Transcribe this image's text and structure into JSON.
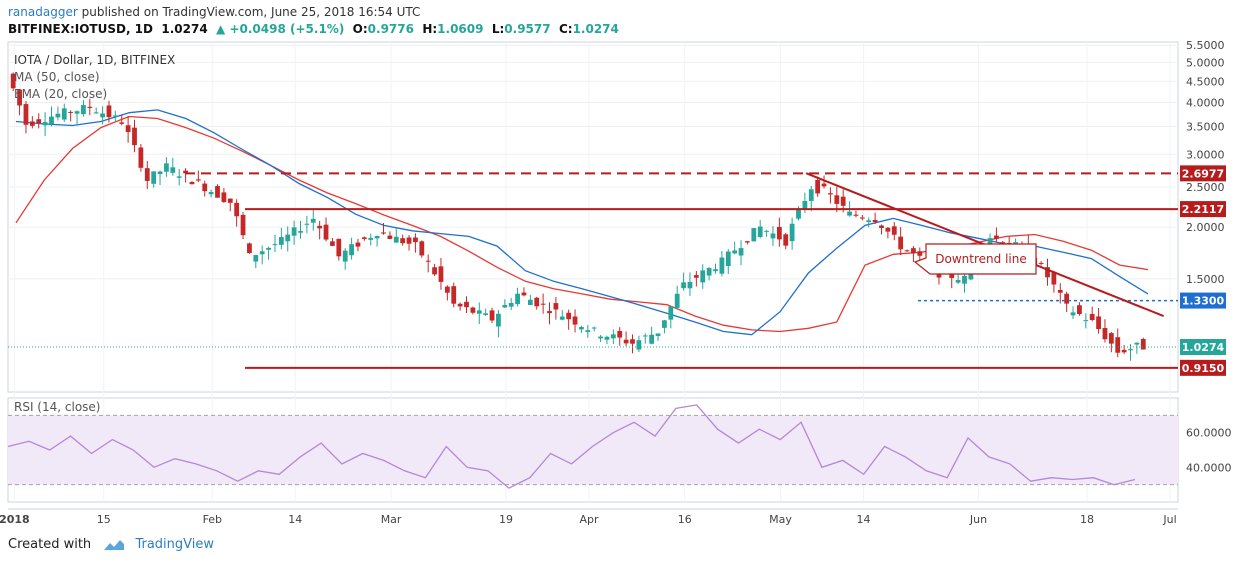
{
  "header": {
    "user": "ranadagger",
    "published": "published on TradingView.com, June 25, 2018 16:54 UTC",
    "symbol": "BITFINEX:IOTUSD, 1D",
    "last": "1.0274",
    "change": "+0.0498 (+5.1%)",
    "o_label": "O:",
    "o": "0.9776",
    "h_label": "H:",
    "h": "1.0609",
    "l_label": "L:",
    "l": "0.9577",
    "c_label": "C:",
    "c": "1.0274"
  },
  "colors": {
    "up": "#26a69a",
    "down": "#c62828",
    "ma50": "#e53935",
    "ema20": "#1e6fd0",
    "level": "#b71c1c",
    "rsi": "#b388d9",
    "rsi_band": "#f1e8f8",
    "accent": "#2a7ec2"
  },
  "chart_data": {
    "type": "candlestick",
    "title": "IOTA / Dollar, 1D, BITFINEX",
    "indicators": [
      "MA (50, close)",
      "EMA (20, close)"
    ],
    "price_axis": [
      "5.5000",
      "5.0000",
      "4.5000",
      "4.0000",
      "3.5000",
      "3.0000",
      "2.5000",
      "2.0000",
      "1.5000"
    ],
    "price_range": [
      0.8,
      5.6
    ],
    "x_labels": [
      "2018",
      "15",
      "Feb",
      "14",
      "Mar",
      "19",
      "Apr",
      "16",
      "May",
      "14",
      "Jun",
      "18",
      "Jul"
    ],
    "levels": [
      {
        "value": 2.6977,
        "label": "2.6977",
        "style": "dashed"
      },
      {
        "value": 2.2117,
        "label": "2.2117",
        "style": "solid"
      },
      {
        "value": 1.33,
        "label": "1.3300",
        "style": "dotted-blue"
      },
      {
        "value": 0.915,
        "label": "0.9150",
        "style": "solid"
      }
    ],
    "current_price": {
      "value": 1.0274,
      "label": "1.0274"
    },
    "trendline": {
      "from": {
        "date": "2018-05-05",
        "value": 2.7
      },
      "to": {
        "date": "2018-06-30",
        "value": 1.22
      }
    },
    "annotation": "Downtrend line",
    "ema20": [
      3.6,
      3.55,
      3.52,
      3.6,
      3.78,
      3.84,
      3.66,
      3.38,
      3.08,
      2.82,
      2.55,
      2.36,
      2.15,
      2.02,
      1.96,
      1.93,
      1.9,
      1.8,
      1.57,
      1.48,
      1.42,
      1.36,
      1.3,
      1.24,
      1.18,
      1.12,
      1.1,
      1.25,
      1.55,
      1.78,
      2.02,
      2.1,
      2.02,
      1.94,
      1.88,
      1.82,
      1.8,
      1.74,
      1.68,
      1.52,
      1.38
    ],
    "ma50": [
      2.05,
      2.6,
      3.1,
      3.48,
      3.7,
      3.66,
      3.48,
      3.28,
      3.05,
      2.82,
      2.6,
      2.42,
      2.28,
      2.14,
      2.02,
      1.9,
      1.75,
      1.6,
      1.48,
      1.42,
      1.38,
      1.34,
      1.32,
      1.3,
      1.22,
      1.16,
      1.13,
      1.12,
      1.14,
      1.18,
      1.62,
      1.72,
      1.74,
      1.78,
      1.84,
      1.9,
      1.92,
      1.85,
      1.76,
      1.62,
      1.58
    ],
    "rsi": {
      "label": "RSI (14, close)",
      "axis": [
        "60.0000",
        "40.0000"
      ],
      "range": [
        20,
        80
      ],
      "bands": [
        70,
        30
      ],
      "values": [
        52,
        55,
        50,
        58,
        48,
        56,
        50,
        40,
        45,
        42,
        38,
        32,
        38,
        36,
        46,
        54,
        42,
        48,
        44,
        38,
        34,
        52,
        40,
        38,
        28,
        34,
        48,
        42,
        52,
        60,
        66,
        58,
        74,
        76,
        62,
        54,
        62,
        56,
        66,
        40,
        44,
        36,
        52,
        46,
        38,
        34,
        57,
        46,
        42,
        32,
        34,
        33,
        34,
        30,
        33
      ]
    }
  },
  "rsi_current": "32.5",
  "footer": {
    "created": "Created with",
    "brand": "TradingView"
  }
}
